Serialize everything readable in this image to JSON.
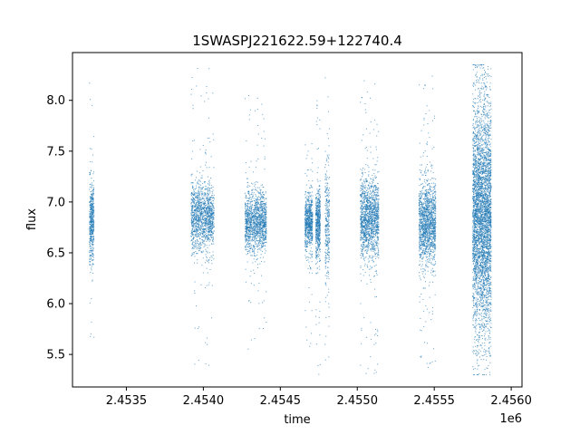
{
  "chart_data": {
    "type": "scatter",
    "title": "1SWASPJ221622.59+122740.4",
    "xlabel": "time",
    "ylabel": "flux",
    "x_offset_label": "1e6",
    "xlim": [
      2.45315,
      2.45607
    ],
    "ylim": [
      5.18,
      8.47
    ],
    "x_ticks": [
      2.4535,
      2.454,
      2.4545,
      2.455,
      2.4555,
      2.456
    ],
    "x_tick_labels": [
      "2.4535",
      "2.4540",
      "2.4545",
      "2.4550",
      "2.4555",
      "2.4560"
    ],
    "y_ticks": [
      5.5,
      6.0,
      6.5,
      7.0,
      7.5,
      8.0
    ],
    "y_tick_labels": [
      "5.5",
      "6.0",
      "6.5",
      "7.0",
      "7.5",
      "8.0"
    ],
    "grid": false,
    "marker_color": "#1f77b4",
    "series": [
      {
        "clusters": [
          {
            "x_start": 2.45326,
            "x_end": 2.45329,
            "center": 6.8,
            "spread": 0.2,
            "y_min": 5.5,
            "y_max": 8.25,
            "points": 520
          },
          {
            "x_start": 2.45392,
            "x_end": 2.45407,
            "center": 6.85,
            "spread": 0.17,
            "y_min": 5.35,
            "y_max": 8.35,
            "points": 1400
          },
          {
            "x_start": 2.45427,
            "x_end": 2.45441,
            "center": 6.8,
            "spread": 0.15,
            "y_min": 5.55,
            "y_max": 8.1,
            "points": 1400
          },
          {
            "x_start": 2.45466,
            "x_end": 2.45471,
            "center": 6.8,
            "spread": 0.14,
            "y_min": 5.55,
            "y_max": 7.6,
            "points": 700
          },
          {
            "x_start": 2.45473,
            "x_end": 2.45476,
            "center": 6.8,
            "spread": 0.17,
            "y_min": 5.3,
            "y_max": 8.1,
            "points": 560
          },
          {
            "x_start": 2.45479,
            "x_end": 2.45482,
            "center": 6.8,
            "spread": 0.3,
            "y_min": 5.35,
            "y_max": 8.25,
            "points": 320
          },
          {
            "x_start": 2.45502,
            "x_end": 2.45514,
            "center": 6.85,
            "spread": 0.2,
            "y_min": 5.3,
            "y_max": 8.25,
            "points": 1500
          },
          {
            "x_start": 2.4554,
            "x_end": 2.45551,
            "center": 6.8,
            "spread": 0.2,
            "y_min": 5.35,
            "y_max": 8.25,
            "points": 1500
          },
          {
            "x_start": 2.45575,
            "x_end": 2.45587,
            "center": 6.85,
            "spread": 0.55,
            "y_min": 5.3,
            "y_max": 8.35,
            "points": 4200
          }
        ]
      }
    ]
  }
}
